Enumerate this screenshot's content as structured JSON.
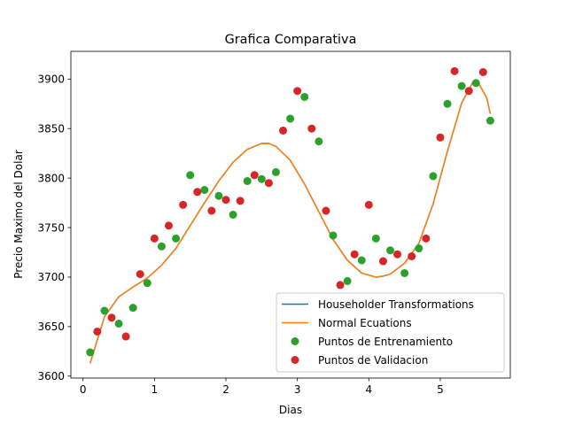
{
  "chart_data": {
    "type": "line",
    "title": "Grafica Comparativa",
    "xlabel": "Dias",
    "ylabel": "Precio Maximo del Dolar",
    "xlim": [
      -0.17,
      5.98
    ],
    "ylim": [
      3598,
      3928
    ],
    "xticks": [
      0,
      1,
      2,
      3,
      4,
      5
    ],
    "yticks": [
      3600,
      3650,
      3700,
      3750,
      3800,
      3850,
      3900
    ],
    "grid": false,
    "legend_position": "lower-right",
    "colors": {
      "householder": "#1f77b4",
      "normal": "#ff7f0e",
      "train": "#2ca02c",
      "valid": "#d62728"
    },
    "series": [
      {
        "name": "Householder Transformations",
        "kind": "line",
        "x": [
          0.1,
          0.3,
          0.5,
          0.7,
          0.9,
          1.1,
          1.3,
          1.5,
          1.7,
          1.9,
          2.1,
          2.3,
          2.5,
          2.6,
          2.7,
          2.9,
          3.1,
          3.3,
          3.5,
          3.7,
          3.9,
          4.1,
          4.2,
          4.3,
          4.5,
          4.7,
          4.9,
          5.1,
          5.3,
          5.45,
          5.55,
          5.65,
          5.7
        ],
        "y": [
          3613,
          3660,
          3680,
          3690,
          3699,
          3712,
          3729,
          3752,
          3775,
          3797,
          3816,
          3829,
          3835,
          3835,
          3832,
          3818,
          3794,
          3766,
          3738,
          3717,
          3704,
          3700,
          3701,
          3703,
          3714,
          3734,
          3774,
          3827,
          3876,
          3896,
          3894,
          3881,
          3865
        ]
      },
      {
        "name": "Normal Ecuations",
        "kind": "line",
        "x": [
          0.1,
          0.3,
          0.5,
          0.7,
          0.9,
          1.1,
          1.3,
          1.5,
          1.7,
          1.9,
          2.1,
          2.3,
          2.5,
          2.6,
          2.7,
          2.9,
          3.1,
          3.3,
          3.5,
          3.7,
          3.9,
          4.1,
          4.2,
          4.3,
          4.5,
          4.7,
          4.9,
          5.1,
          5.3,
          5.45,
          5.55,
          5.65,
          5.7
        ],
        "y": [
          3613,
          3660,
          3680,
          3690,
          3699,
          3712,
          3729,
          3752,
          3775,
          3797,
          3816,
          3829,
          3835,
          3835,
          3832,
          3818,
          3794,
          3766,
          3738,
          3717,
          3704,
          3700,
          3701,
          3703,
          3714,
          3734,
          3774,
          3827,
          3876,
          3896,
          3894,
          3881,
          3865
        ]
      },
      {
        "name": "Puntos de Entrenamiento",
        "kind": "scatter",
        "x": [
          0.1,
          0.3,
          0.5,
          0.7,
          0.9,
          1.1,
          1.3,
          1.5,
          1.7,
          1.9,
          2.1,
          2.3,
          2.5,
          2.7,
          2.9,
          3.1,
          3.3,
          3.5,
          3.7,
          3.9,
          4.1,
          4.3,
          4.5,
          4.7,
          4.9,
          5.1,
          5.3,
          5.5,
          5.7
        ],
        "y": [
          3624,
          3666,
          3653,
          3669,
          3694,
          3731,
          3739,
          3803,
          3788,
          3782,
          3763,
          3797,
          3799,
          3806,
          3860,
          3882,
          3837,
          3742,
          3696,
          3717,
          3739,
          3727,
          3704,
          3729,
          3802,
          3875,
          3893,
          3896,
          3858
        ]
      },
      {
        "name": "Puntos de Validacion",
        "kind": "scatter",
        "x": [
          0.2,
          0.4,
          0.6,
          0.8,
          1.0,
          1.2,
          1.4,
          1.6,
          1.8,
          2.0,
          2.2,
          2.4,
          2.6,
          2.8,
          3.0,
          3.2,
          3.4,
          3.6,
          3.8,
          4.0,
          4.2,
          4.4,
          4.6,
          4.8,
          5.0,
          5.2,
          5.4,
          5.6
        ],
        "y": [
          3645,
          3659,
          3640,
          3703,
          3739,
          3752,
          3773,
          3786,
          3767,
          3778,
          3777,
          3803,
          3795,
          3848,
          3888,
          3850,
          3767,
          3692,
          3723,
          3773,
          3716,
          3723,
          3721,
          3739,
          3841,
          3908,
          3888,
          3907
        ]
      }
    ]
  }
}
